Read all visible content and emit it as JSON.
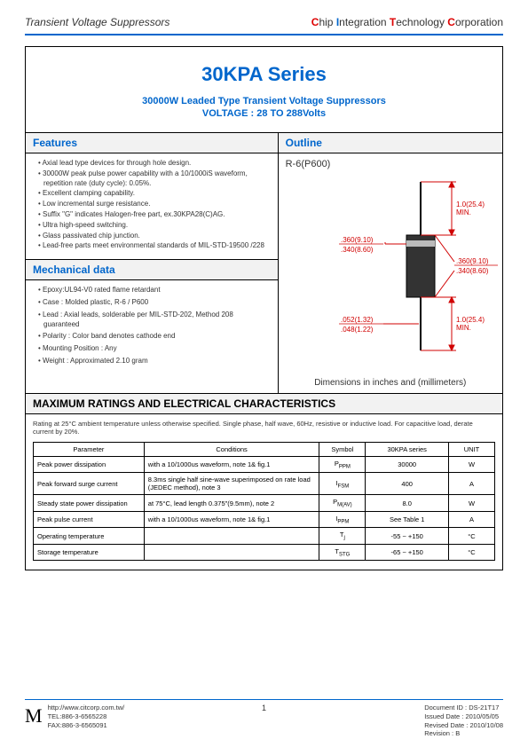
{
  "header": {
    "left": "Transient Voltage Suppressors",
    "right_full": "Chip Integration Technology Corporation"
  },
  "title": "30KPA Series",
  "subtitle1": "30000W  Leaded Type Transient Voltage Suppressors",
  "subtitle2": "VOLTAGE : 28 TO 288Volts",
  "features": {
    "heading": "Features",
    "items": [
      "Axial lead type devices for through hole design.",
      "30000W peak pulse power capability with a 10/1000iS waveform, repetition rate (duty cycle): 0.05%.",
      "Excellent clamping capability.",
      "Low incremental surge resistance.",
      "Suffix \"G\" indicates Halogen-free part, ex.30KPA28(C)AG.",
      "Ultra high-speed switching.",
      "Glass passivated chip junction.",
      "Lead-free parts meet environmental standards of MIL-STD-19500 /228"
    ]
  },
  "mechanical": {
    "heading": "Mechanical data",
    "items": [
      "Epoxy:UL94-V0 rated flame retardant",
      "Case : Molded plastic,  R-6 / P600",
      "Lead : Axial leads, solderable per MIL-STD-202, Method 208 guaranteed",
      "Polarity : Color band denotes cathode end",
      "Mounting Position : Any",
      "Weight : Approximated 2.10 gram"
    ]
  },
  "outline": {
    "heading": "Outline",
    "package": "R-6(P600)",
    "dims": {
      "lead_len": "1.0(25.4) MIN.",
      "body_dia_top": ".360(9.10)",
      "body_dia_bot": ".340(8.60)",
      "body_len_top": ".360(9.10)",
      "body_len_bot": ".340(8.60)",
      "lead_dia_top": ".052(1.32)",
      "lead_dia_bot": ".048(1.22)"
    },
    "note": "Dimensions in inches and (millimeters)",
    "colors": {
      "guide": "#d00000",
      "part": "#000000"
    }
  },
  "max_heading": "MAXIMUM RATINGS AND ELECTRICAL CHARACTERISTICS",
  "rating_note": "Rating at 25°C ambient temperature unless otherwise specified. Single phase, half wave, 60Hz, resistive or inductive load. For capacitive load, derate current by 20%.",
  "table": {
    "headers": [
      "Parameter",
      "Conditions",
      "Symbol",
      "30KPA series",
      "UNIT"
    ],
    "rows": [
      [
        "Peak power dissipation",
        "with a 10/1000us waveform, note 1& fig.1",
        "P_PPM",
        "30000",
        "W"
      ],
      [
        "Peak forward surge current",
        "8.3ms single half sine-wave superimposed on rate load (JEDEC method), note 3",
        "I_FSM",
        "400",
        "A"
      ],
      [
        "Steady state power dissipation",
        "at 75°C, lead length 0.375\"(9.5mm), note 2",
        "P_M(AV)",
        "8.0",
        "W"
      ],
      [
        "Peak pulse current",
        "with a 10/1000us waveform, note 1& fig.1",
        "I_PPM",
        "See Table 1",
        "A"
      ],
      [
        "Operating temperature",
        "",
        "T_j",
        "-55 ~ +150",
        "°C"
      ],
      [
        "Storage temperature",
        "",
        "T_STG",
        "-65 ~ +150",
        "°C"
      ]
    ]
  },
  "footer": {
    "url": "http://www.citcorp.com.tw/",
    "tel": "TEL:886-3-6565228",
    "fax": "FAX:886-3-6565091",
    "page": "1",
    "docid": "Document ID : DS-21T17",
    "issued": "Issued Date : 2010/05/05",
    "revised": "Revised Date  : 2010/10/08",
    "rev": "Revision : B"
  }
}
